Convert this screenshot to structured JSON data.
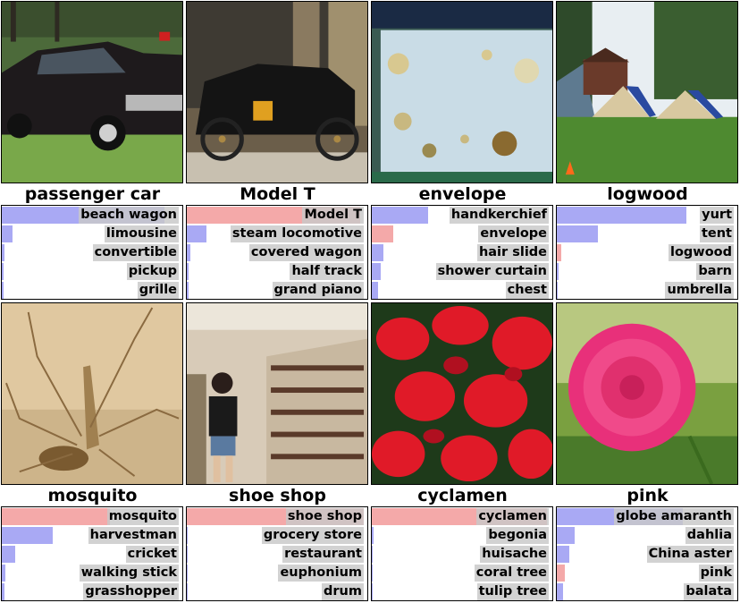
{
  "colors": {
    "correct_bar": "#f4a9a9",
    "other_bar": "#a9a9f4"
  },
  "panels": [
    {
      "title": "passenger car",
      "image": "black vintage hearse car",
      "predictions": [
        {
          "label": "beach wagon",
          "p": 0.9,
          "correct": false
        },
        {
          "label": "limousine",
          "p": 0.06,
          "correct": false
        },
        {
          "label": "convertible",
          "p": 0.015,
          "correct": false
        },
        {
          "label": "pickup",
          "p": 0.01,
          "correct": false
        },
        {
          "label": "grille",
          "p": 0.008,
          "correct": false
        }
      ]
    },
    {
      "title": "Model T",
      "image": "antique black car in museum",
      "predictions": [
        {
          "label": "Model T",
          "p": 0.96,
          "correct": true
        },
        {
          "label": "steam locomotive",
          "p": 0.11,
          "correct": false
        },
        {
          "label": "covered wagon",
          "p": 0.02,
          "correct": false
        },
        {
          "label": "half track",
          "p": 0.01,
          "correct": false
        },
        {
          "label": "grand piano",
          "p": 0.008,
          "correct": false
        }
      ]
    },
    {
      "title": "envelope",
      "image": "paper with cut-out decorations",
      "predictions": [
        {
          "label": "handkerchief",
          "p": 0.31,
          "correct": false
        },
        {
          "label": "envelope",
          "p": 0.12,
          "correct": true
        },
        {
          "label": "hair slide",
          "p": 0.065,
          "correct": false
        },
        {
          "label": "shower curtain",
          "p": 0.05,
          "correct": false
        },
        {
          "label": "chest",
          "p": 0.035,
          "correct": false
        }
      ]
    },
    {
      "title": "logwood",
      "image": "tents on lawn",
      "predictions": [
        {
          "label": "yurt",
          "p": 0.72,
          "correct": false
        },
        {
          "label": "tent",
          "p": 0.23,
          "correct": false
        },
        {
          "label": "logwood",
          "p": 0.025,
          "correct": true
        },
        {
          "label": "barn",
          "p": 0.008,
          "correct": false
        },
        {
          "label": "umbrella",
          "p": 0.005,
          "correct": false
        }
      ]
    },
    {
      "title": "mosquito",
      "image": "close-up of a mosquito",
      "predictions": [
        {
          "label": "mosquito",
          "p": 0.6,
          "correct": true
        },
        {
          "label": "harvestman",
          "p": 0.28,
          "correct": false
        },
        {
          "label": "cricket",
          "p": 0.075,
          "correct": false
        },
        {
          "label": "walking stick",
          "p": 0.02,
          "correct": false
        },
        {
          "label": "grasshopper",
          "p": 0.015,
          "correct": false
        }
      ]
    },
    {
      "title": "shoe shop",
      "image": "woman in shoe store",
      "predictions": [
        {
          "label": "shoe shop",
          "p": 0.98,
          "correct": true
        },
        {
          "label": "grocery store",
          "p": 0.005,
          "correct": false
        },
        {
          "label": "restaurant",
          "p": 0.004,
          "correct": false
        },
        {
          "label": "euphonium",
          "p": 0.003,
          "correct": false
        },
        {
          "label": "drum",
          "p": 0.003,
          "correct": false
        }
      ]
    },
    {
      "title": "cyclamen",
      "image": "red cyclamen flowers",
      "predictions": [
        {
          "label": "cyclamen",
          "p": 0.97,
          "correct": true
        },
        {
          "label": "begonia",
          "p": 0.01,
          "correct": false
        },
        {
          "label": "huisache",
          "p": 0.005,
          "correct": false
        },
        {
          "label": "coral tree",
          "p": 0.004,
          "correct": false
        },
        {
          "label": "tulip tree",
          "p": 0.004,
          "correct": false
        }
      ]
    },
    {
      "title": "pink",
      "image": "pink dahlia flower",
      "predictions": [
        {
          "label": "globe amaranth",
          "p": 0.7,
          "correct": false
        },
        {
          "label": "dahlia",
          "p": 0.1,
          "correct": false
        },
        {
          "label": "China aster",
          "p": 0.07,
          "correct": false
        },
        {
          "label": "pink",
          "p": 0.045,
          "correct": true
        },
        {
          "label": "balata",
          "p": 0.035,
          "correct": false
        }
      ]
    }
  ]
}
